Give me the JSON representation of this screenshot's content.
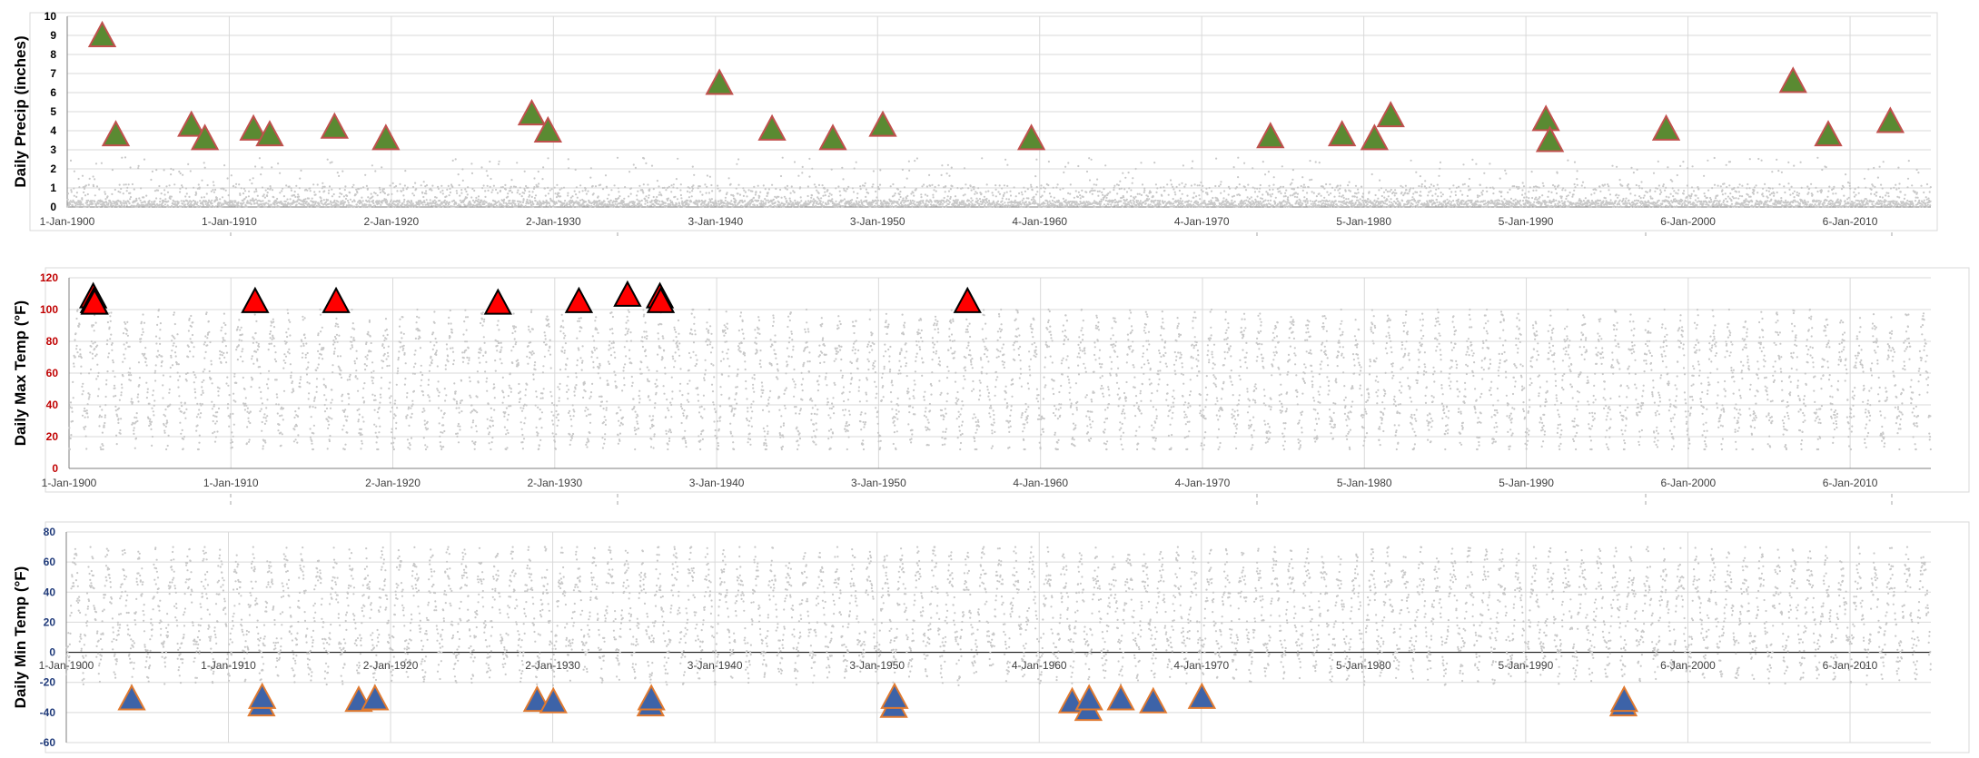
{
  "colors": {
    "precip_marker_fill": "#5a8a32",
    "precip_marker_stroke": "#c0504d",
    "max_marker_fill": "#ff0000",
    "max_marker_stroke": "#000000",
    "min_marker_fill": "#3d63a8",
    "min_marker_stroke": "#e07a30",
    "scatter_points": "#c8c8c8",
    "precip_tick_label": "#000000",
    "max_tick_label": "#c00000",
    "min_tick_label": "#1f3a7a",
    "gridline": "#d9d9d9"
  },
  "chart_data": [
    {
      "type": "scatter",
      "ylabel": "Daily Precip (inches)",
      "xlabel": "",
      "ylim": [
        0,
        10
      ],
      "yticks": [
        0,
        1,
        2,
        3,
        4,
        5,
        6,
        7,
        8,
        9,
        10
      ],
      "xlim": [
        "1900-01-01",
        "2015-01-01"
      ],
      "xticks": [
        "1-Jan-1900",
        "1-Jan-1910",
        "2-Jan-1920",
        "2-Jan-1930",
        "3-Jan-1940",
        "3-Jan-1950",
        "4-Jan-1960",
        "4-Jan-1970",
        "5-Jan-1980",
        "5-Jan-1990",
        "6-Jan-2000",
        "6-Jan-2010"
      ],
      "grid": true,
      "legend": "none",
      "background_series": "daily precipitation (gray points, mostly below 2 in)",
      "markers": [
        {
          "x": "1902-03-01",
          "y": 8.9
        },
        {
          "x": "1903-01-01",
          "y": 3.7
        },
        {
          "x": "1907-09-01",
          "y": 4.2
        },
        {
          "x": "1908-07-01",
          "y": 3.5
        },
        {
          "x": "1911-07-01",
          "y": 4.0
        },
        {
          "x": "1912-07-01",
          "y": 3.7
        },
        {
          "x": "1916-07-01",
          "y": 4.1
        },
        {
          "x": "1919-09-01",
          "y": 3.5
        },
        {
          "x": "1928-09-01",
          "y": 4.8
        },
        {
          "x": "1929-09-01",
          "y": 3.9
        },
        {
          "x": "1940-04-01",
          "y": 6.4
        },
        {
          "x": "1943-07-01",
          "y": 4.0
        },
        {
          "x": "1947-04-01",
          "y": 3.5
        },
        {
          "x": "1950-05-01",
          "y": 4.2
        },
        {
          "x": "1959-07-01",
          "y": 3.5
        },
        {
          "x": "1974-04-01",
          "y": 3.6
        },
        {
          "x": "1978-09-01",
          "y": 3.7
        },
        {
          "x": "1980-09-01",
          "y": 3.5
        },
        {
          "x": "1981-09-01",
          "y": 4.7
        },
        {
          "x": "1991-04-01",
          "y": 4.5
        },
        {
          "x": "1991-07-01",
          "y": 3.4
        },
        {
          "x": "1998-09-01",
          "y": 4.0
        },
        {
          "x": "2006-07-01",
          "y": 6.5
        },
        {
          "x": "2008-09-01",
          "y": 3.7
        },
        {
          "x": "2012-07-01",
          "y": 4.4
        }
      ]
    },
    {
      "type": "scatter",
      "ylabel": "Daily Max Temp (°F)",
      "xlabel": "",
      "ylim": [
        0,
        120
      ],
      "yticks": [
        0,
        20,
        40,
        60,
        80,
        100,
        120
      ],
      "xlim": [
        "1900-01-01",
        "2015-01-01"
      ],
      "xticks": [
        "1-Jan-1900",
        "1-Jan-1910",
        "2-Jan-1920",
        "2-Jan-1930",
        "3-Jan-1940",
        "3-Jan-1950",
        "4-Jan-1960",
        "4-Jan-1970",
        "5-Jan-1980",
        "5-Jan-1990",
        "6-Jan-2000",
        "6-Jan-2010"
      ],
      "grid": true,
      "legend": "none",
      "background_series": "daily maximum temperature (gray points, seasonal cycle about 10 to 100 °F)",
      "markers": [
        {
          "x": "1901-07-01",
          "y": 107
        },
        {
          "x": "1901-07-15",
          "y": 104
        },
        {
          "x": "1901-08-01",
          "y": 103
        },
        {
          "x": "1911-07-01",
          "y": 104
        },
        {
          "x": "1916-07-01",
          "y": 104
        },
        {
          "x": "1926-07-01",
          "y": 103
        },
        {
          "x": "1931-07-01",
          "y": 104
        },
        {
          "x": "1934-07-01",
          "y": 108
        },
        {
          "x": "1936-07-01",
          "y": 107
        },
        {
          "x": "1936-07-20",
          "y": 104
        },
        {
          "x": "1955-07-01",
          "y": 104
        }
      ]
    },
    {
      "type": "scatter",
      "ylabel": "Daily Min Temp (°F)",
      "xlabel": "",
      "ylim": [
        -60,
        80
      ],
      "yticks": [
        -60,
        -40,
        -20,
        0,
        20,
        40,
        60,
        80
      ],
      "xlim": [
        "1900-01-01",
        "2015-01-01"
      ],
      "xticks": [
        "1-Jan-1900",
        "1-Jan-1910",
        "2-Jan-1920",
        "2-Jan-1930",
        "3-Jan-1940",
        "3-Jan-1950",
        "4-Jan-1960",
        "4-Jan-1970",
        "5-Jan-1980",
        "5-Jan-1990",
        "6-Jan-2000",
        "6-Jan-2010"
      ],
      "grid": true,
      "legend": "none",
      "background_series": "daily minimum temperature (gray points, seasonal cycle about -20 to 70 °F)",
      "markers": [
        {
          "x": "1904-01-15",
          "y": -32
        },
        {
          "x": "1912-01-15",
          "y": -36
        },
        {
          "x": "1912-02-01",
          "y": -31
        },
        {
          "x": "1918-01-15",
          "y": -33
        },
        {
          "x": "1919-01-15",
          "y": -32
        },
        {
          "x": "1929-01-15",
          "y": -33
        },
        {
          "x": "1930-01-15",
          "y": -34
        },
        {
          "x": "1936-01-15",
          "y": -36
        },
        {
          "x": "1936-02-01",
          "y": -32
        },
        {
          "x": "1951-01-15",
          "y": -37
        },
        {
          "x": "1951-02-01",
          "y": -31
        },
        {
          "x": "1962-01-15",
          "y": -34
        },
        {
          "x": "1963-01-15",
          "y": -39
        },
        {
          "x": "1963-02-01",
          "y": -32
        },
        {
          "x": "1965-01-15",
          "y": -32
        },
        {
          "x": "1967-01-15",
          "y": -34
        },
        {
          "x": "1970-01-15",
          "y": -31
        },
        {
          "x": "1996-01-15",
          "y": -36
        },
        {
          "x": "1996-02-01",
          "y": -33
        }
      ]
    }
  ]
}
